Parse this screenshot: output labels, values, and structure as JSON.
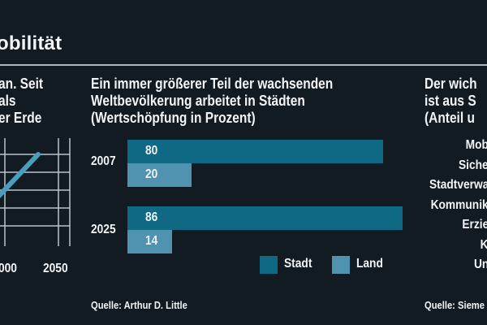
{
  "page_title": "obilität",
  "left_panel": {
    "heading_lines": [
      "an. Seit",
      "als",
      "er Erde"
    ],
    "x_ticks": [
      "000",
      "2050"
    ],
    "line_color": "#4a9dbd",
    "grid_color": "#b8c4cb"
  },
  "center_panel": {
    "heading_lines": [
      "Ein immer größerer Teil der wachsenden",
      "Weltbevölkerung arbeitet in Städten",
      "(Wertschöpfung in Prozent)"
    ],
    "source": "Quelle: Arthur D. Little"
  },
  "right_panel": {
    "heading_lines": [
      "Der wich",
      "ist aus S",
      "(Anteil u"
    ],
    "categories": [
      "Mob",
      "Siche",
      "Stadtverwa",
      "Kommunik",
      "Erzie",
      "K",
      "Un"
    ],
    "source": "Quelle: Sieme"
  },
  "chart_data": {
    "type": "bar",
    "orientation": "horizontal",
    "title": "Ein immer größerer Teil der wachsenden Weltbevölkerung arbeitet in Städten (Wertschöpfung in Prozent)",
    "categories": [
      "2007",
      "2025"
    ],
    "series": [
      {
        "name": "Stadt",
        "values": [
          80,
          86
        ],
        "color": "#0f6985"
      },
      {
        "name": "Land",
        "values": [
          20,
          14
        ],
        "color": "#4f93b0"
      }
    ],
    "xlim": [
      0,
      86
    ],
    "legend": [
      "Stadt",
      "Land"
    ],
    "legend_position": "bottom-right",
    "grid": false,
    "source": "Quelle: Arthur D. Little"
  }
}
